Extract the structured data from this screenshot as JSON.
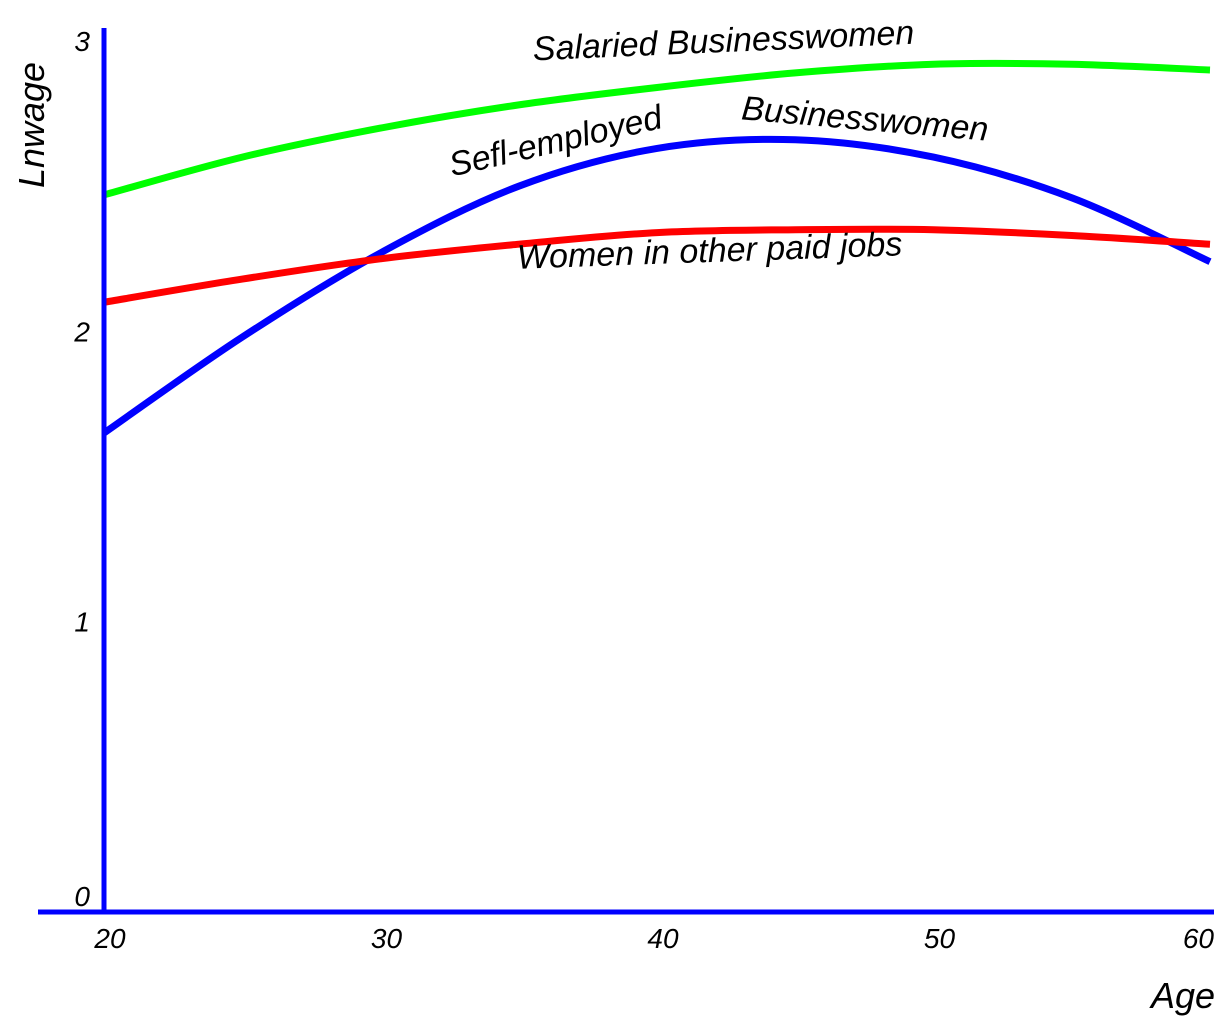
{
  "chart_data": {
    "type": "line",
    "title": "",
    "xlabel": "Age",
    "ylabel": "Lnwage",
    "xlim": [
      20,
      60
    ],
    "ylim": [
      0,
      3
    ],
    "xticks": [
      20,
      30,
      40,
      50,
      60
    ],
    "yticks": [
      0,
      1,
      2,
      3
    ],
    "xtick_labels": [
      "20",
      "30",
      "40",
      "50",
      "60"
    ],
    "ytick_labels": [
      "0",
      "1",
      "2",
      "3"
    ],
    "grid": false,
    "legend": "none",
    "series": [
      {
        "name": "Salaried Businesswomen",
        "color": "#00ff00",
        "x": [
          20,
          25,
          30,
          35,
          40,
          45,
          50,
          55,
          60
        ],
        "y": [
          2.47,
          2.6,
          2.7,
          2.78,
          2.84,
          2.89,
          2.92,
          2.92,
          2.9
        ]
      },
      {
        "name": "Sefl-employed Businesswomen",
        "color": "#0000ff",
        "x": [
          20,
          25,
          30,
          35,
          40,
          45,
          50,
          55,
          60
        ],
        "y": [
          1.65,
          1.98,
          2.27,
          2.5,
          2.63,
          2.66,
          2.6,
          2.46,
          2.24
        ]
      },
      {
        "name": "Women in other paid jobs",
        "color": "#ff0000",
        "x": [
          20,
          25,
          30,
          35,
          40,
          45,
          50,
          55,
          60
        ],
        "y": [
          2.1,
          2.18,
          2.25,
          2.3,
          2.34,
          2.35,
          2.35,
          2.33,
          2.3
        ]
      }
    ],
    "annotations": {
      "salaried": "Salaried Businesswomen",
      "self_employed_1": "Sefl-employed",
      "self_employed_2": "Businesswomen",
      "other_jobs": "Women in other paid jobs"
    },
    "axis_color": "#0000ff"
  }
}
